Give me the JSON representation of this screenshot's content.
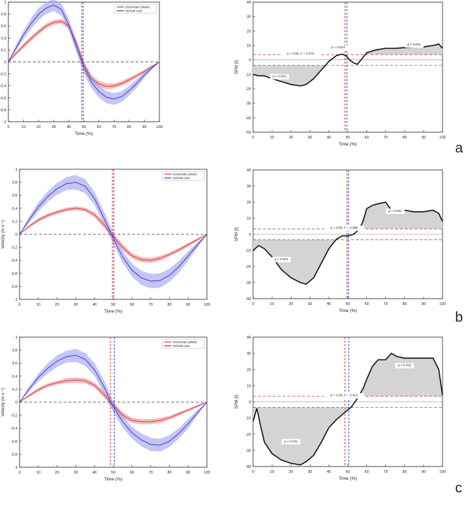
{
  "figure": {
    "labels": [
      "a",
      "b",
      "c"
    ]
  },
  "legend": {
    "horizontal": "Horizontal cylinder",
    "vertical": "Vertical cone"
  },
  "colors": {
    "red": "#d63a3a",
    "red_band": "#f0a4a4",
    "blue": "#3a3ad0",
    "blue_band": "#a6a6f0",
    "spm_fill": "#d4d4d4",
    "threshold": "#c44444"
  },
  "chart_data": [
    {
      "panel": "a",
      "type": "line",
      "xlabel": "Time (%)",
      "ylabel": "Vertical velocity (m s⁻¹)",
      "xlim": [
        0,
        100
      ],
      "ylim": [
        -1,
        1
      ],
      "xticks": [
        0,
        10,
        20,
        30,
        40,
        50,
        60,
        70,
        80,
        90,
        100
      ],
      "yticks": [
        -1,
        -0.8,
        -0.6,
        -0.4,
        -0.2,
        0,
        0.2,
        0.4,
        0.6,
        0.8,
        1
      ],
      "vlines": {
        "red": 48.5,
        "blue": 49.5
      },
      "series": [
        {
          "name": "Horizontal cylinder",
          "color": "red",
          "x": [
            0,
            5,
            10,
            15,
            20,
            25,
            30,
            35,
            40,
            45,
            50,
            55,
            60,
            65,
            70,
            75,
            80,
            85,
            90,
            95,
            100
          ],
          "y": [
            0,
            0.14,
            0.27,
            0.39,
            0.5,
            0.6,
            0.66,
            0.68,
            0.6,
            0.32,
            -0.05,
            -0.28,
            -0.37,
            -0.41,
            -0.4,
            -0.36,
            -0.3,
            -0.23,
            -0.16,
            -0.08,
            0
          ],
          "band": [
            0,
            0.03,
            0.04,
            0.04,
            0.04,
            0.04,
            0.04,
            0.04,
            0.05,
            0.05,
            0.06,
            0.06,
            0.05,
            0.05,
            0.04,
            0.04,
            0.04,
            0.03,
            0.03,
            0.02,
            0
          ]
        },
        {
          "name": "Vertical cone",
          "color": "blue",
          "x": [
            0,
            5,
            10,
            15,
            20,
            25,
            30,
            35,
            40,
            45,
            50,
            55,
            60,
            65,
            70,
            75,
            80,
            85,
            90,
            95,
            100
          ],
          "y": [
            0,
            0.23,
            0.45,
            0.64,
            0.8,
            0.9,
            0.95,
            0.88,
            0.62,
            0.26,
            -0.1,
            -0.34,
            -0.5,
            -0.59,
            -0.62,
            -0.58,
            -0.48,
            -0.36,
            -0.22,
            -0.1,
            0
          ],
          "band": [
            0,
            0.05,
            0.07,
            0.09,
            0.1,
            0.1,
            0.1,
            0.1,
            0.1,
            0.1,
            0.1,
            0.1,
            0.1,
            0.1,
            0.1,
            0.09,
            0.08,
            0.07,
            0.05,
            0.03,
            0
          ]
        }
      ]
    },
    {
      "panel": "a",
      "type": "line",
      "xlabel": "Time (%)",
      "ylabel": "SPM {t}",
      "xlim": [
        0,
        100
      ],
      "ylim": [
        -50,
        40
      ],
      "xticks": [
        0,
        10,
        20,
        30,
        40,
        50,
        60,
        70,
        80,
        90,
        100
      ],
      "yticks": [
        -50,
        -40,
        -30,
        -20,
        -10,
        0,
        10,
        20,
        30,
        40
      ],
      "vlines": {
        "red": 48.5,
        "blue": 49.5
      },
      "threshold": 3.672,
      "annotations": [
        {
          "text": "α = 0.05,  t* = 3.672",
          "x": 25,
          "y": 3.7
        },
        {
          "text": "p < 0.001",
          "x": 14,
          "y": -12
        },
        {
          "text": "p = 0.014",
          "x": 45,
          "y": 8
        },
        {
          "text": "p < 0.001",
          "x": 85,
          "y": 10
        }
      ],
      "x": [
        0,
        3,
        6,
        10,
        15,
        20,
        25,
        28,
        32,
        36,
        40,
        44,
        47,
        49,
        51,
        53,
        55,
        57,
        60,
        65,
        70,
        75,
        80,
        85,
        90,
        95,
        98,
        100
      ],
      "y": [
        -10,
        -11,
        -11,
        -13,
        -15,
        -17,
        -18,
        -17,
        -13,
        -7,
        -1,
        3,
        4,
        3,
        0,
        -2,
        -3,
        0,
        5,
        7,
        8,
        8,
        8.5,
        9,
        9,
        10,
        11,
        8
      ]
    },
    {
      "panel": "b",
      "type": "line",
      "xlabel": "Time (%)",
      "ylabel": "Velocity (m s⁻¹)",
      "xlim": [
        0,
        100
      ],
      "ylim": [
        -1,
        1
      ],
      "xticks": [
        0,
        10,
        20,
        30,
        40,
        50,
        60,
        70,
        80,
        90,
        100
      ],
      "yticks": [
        -1,
        -0.8,
        -0.6,
        -0.4,
        -0.2,
        0,
        0.2,
        0.4,
        0.6,
        0.8,
        1
      ],
      "vlines": {
        "red": 49.5,
        "blue": 50.3
      },
      "series": [
        {
          "name": "Horizontal cylinder",
          "color": "red",
          "x": [
            0,
            5,
            10,
            15,
            20,
            25,
            30,
            35,
            40,
            45,
            50,
            55,
            60,
            65,
            70,
            75,
            80,
            85,
            90,
            95,
            100
          ],
          "y": [
            0,
            0.12,
            0.22,
            0.29,
            0.34,
            0.38,
            0.4,
            0.38,
            0.3,
            0.15,
            -0.03,
            -0.2,
            -0.33,
            -0.39,
            -0.4,
            -0.37,
            -0.31,
            -0.24,
            -0.16,
            -0.08,
            0
          ],
          "band": [
            0,
            0.02,
            0.03,
            0.03,
            0.03,
            0.03,
            0.03,
            0.03,
            0.04,
            0.05,
            0.05,
            0.05,
            0.04,
            0.04,
            0.04,
            0.04,
            0.03,
            0.03,
            0.03,
            0.02,
            0
          ]
        },
        {
          "name": "Vertical cone",
          "color": "blue",
          "x": [
            0,
            5,
            10,
            15,
            20,
            25,
            30,
            35,
            40,
            45,
            50,
            55,
            60,
            65,
            70,
            75,
            80,
            85,
            90,
            95,
            100
          ],
          "y": [
            0,
            0.22,
            0.42,
            0.58,
            0.7,
            0.78,
            0.8,
            0.74,
            0.55,
            0.25,
            -0.06,
            -0.35,
            -0.55,
            -0.67,
            -0.72,
            -0.71,
            -0.63,
            -0.5,
            -0.33,
            -0.16,
            0
          ],
          "band": [
            0,
            0.05,
            0.07,
            0.08,
            0.09,
            0.1,
            0.11,
            0.11,
            0.1,
            0.1,
            0.09,
            0.09,
            0.1,
            0.11,
            0.11,
            0.11,
            0.1,
            0.09,
            0.07,
            0.04,
            0
          ]
        }
      ]
    },
    {
      "panel": "b",
      "type": "line",
      "xlabel": "Time (%)",
      "ylabel": "SPM {t}",
      "xlim": [
        0,
        100
      ],
      "ylim": [
        -40,
        40
      ],
      "xticks": [
        0,
        10,
        20,
        30,
        40,
        50,
        60,
        70,
        80,
        90,
        100
      ],
      "yticks": [
        -40,
        -30,
        -20,
        -10,
        0,
        10,
        20,
        30,
        40
      ],
      "vlines": {
        "red": 49.5,
        "blue": 50.3
      },
      "threshold": 3.396,
      "annotations": [
        {
          "text": "α = 0.05,  t* = 3.396",
          "x": 48,
          "y": 3.4
        },
        {
          "text": "p < 0.001",
          "x": 15,
          "y": -16
        },
        {
          "text": "p < 0.001",
          "x": 75,
          "y": 14
        }
      ],
      "x": [
        0,
        3,
        6,
        10,
        15,
        20,
        25,
        28,
        32,
        36,
        40,
        44,
        47,
        50,
        53,
        56,
        58,
        60,
        63,
        66,
        70,
        73,
        76,
        80,
        85,
        90,
        95,
        98,
        100
      ],
      "y": [
        -10,
        -7,
        -9,
        -14,
        -22,
        -27,
        -30,
        -31,
        -27,
        -18,
        -9,
        -3,
        -1,
        -1,
        0,
        3,
        8,
        16,
        18,
        19,
        20,
        15,
        15,
        15,
        14,
        14,
        15,
        13,
        8
      ]
    },
    {
      "panel": "c",
      "type": "line",
      "xlabel": "Time (%)",
      "ylabel": "Velocity (m s⁻¹)",
      "xlim": [
        0,
        100
      ],
      "ylim": [
        -1,
        1
      ],
      "xticks": [
        0,
        10,
        20,
        30,
        40,
        50,
        60,
        70,
        80,
        90,
        100
      ],
      "yticks": [
        -1,
        -0.8,
        -0.6,
        -0.4,
        -0.2,
        0,
        0.2,
        0.4,
        0.6,
        0.8,
        1
      ],
      "vlines": {
        "red": 48.5,
        "blue": 50.5
      },
      "series": [
        {
          "name": "Horizontal cylinder",
          "color": "red",
          "x": [
            0,
            5,
            10,
            15,
            20,
            25,
            30,
            35,
            40,
            45,
            50,
            55,
            60,
            65,
            70,
            75,
            80,
            85,
            90,
            95,
            100
          ],
          "y": [
            0,
            0.1,
            0.19,
            0.26,
            0.3,
            0.33,
            0.34,
            0.33,
            0.26,
            0.12,
            -0.05,
            -0.2,
            -0.28,
            -0.3,
            -0.3,
            -0.28,
            -0.24,
            -0.18,
            -0.12,
            -0.06,
            0
          ],
          "band": [
            0,
            0.02,
            0.03,
            0.03,
            0.03,
            0.04,
            0.04,
            0.04,
            0.04,
            0.05,
            0.05,
            0.05,
            0.04,
            0.04,
            0.04,
            0.04,
            0.03,
            0.03,
            0.02,
            0.02,
            0
          ]
        },
        {
          "name": "Vertical cone",
          "color": "blue",
          "x": [
            0,
            5,
            10,
            15,
            20,
            25,
            30,
            35,
            40,
            45,
            50,
            55,
            60,
            65,
            70,
            75,
            80,
            85,
            90,
            95,
            100
          ],
          "y": [
            0,
            0.2,
            0.38,
            0.52,
            0.63,
            0.7,
            0.72,
            0.66,
            0.5,
            0.24,
            -0.07,
            -0.3,
            -0.47,
            -0.58,
            -0.65,
            -0.66,
            -0.6,
            -0.48,
            -0.33,
            -0.16,
            0
          ],
          "band": [
            0,
            0.04,
            0.06,
            0.08,
            0.09,
            0.09,
            0.1,
            0.1,
            0.1,
            0.1,
            0.09,
            0.09,
            0.09,
            0.1,
            0.1,
            0.1,
            0.09,
            0.08,
            0.07,
            0.04,
            0
          ]
        }
      ]
    },
    {
      "panel": "c",
      "type": "line",
      "xlabel": "Time (%)",
      "ylabel": "SPM {t}",
      "xlim": [
        0,
        100
      ],
      "ylim": [
        -40,
        40
      ],
      "xticks": [
        0,
        10,
        20,
        30,
        40,
        50,
        60,
        70,
        80,
        90,
        100
      ],
      "yticks": [
        -40,
        -30,
        -20,
        -10,
        0,
        10,
        20,
        30,
        40
      ],
      "vlines": {
        "red": 48.5,
        "blue": 50.5
      },
      "threshold": 3.415,
      "annotations": [
        {
          "text": "α = 0.05,  t* = 3.415",
          "x": 48,
          "y": 3.4
        },
        {
          "text": "p < 0.001",
          "x": 20,
          "y": -25
        },
        {
          "text": "p < 0.001",
          "x": 80,
          "y": 22
        }
      ],
      "x": [
        0,
        2,
        4,
        6,
        10,
        15,
        20,
        25,
        28,
        32,
        36,
        40,
        44,
        48,
        52,
        55,
        58,
        60,
        63,
        66,
        70,
        73,
        76,
        80,
        85,
        90,
        95,
        98,
        100
      ],
      "y": [
        -12,
        -4,
        -15,
        -25,
        -32,
        -36,
        -38,
        -39,
        -37,
        -33,
        -25,
        -16,
        -11,
        -7,
        -3,
        2,
        8,
        14,
        22,
        26,
        26,
        30,
        28,
        27,
        27,
        27,
        27,
        20,
        4
      ]
    }
  ]
}
